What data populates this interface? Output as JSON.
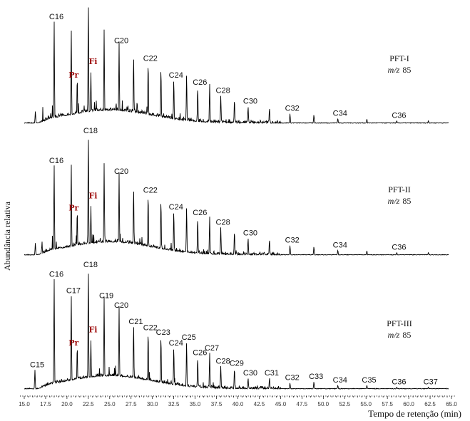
{
  "chart_data": {
    "type": "line",
    "title": "",
    "xlabel": "Tempo de retenção (min)",
    "ylabel": "Abundância relativa",
    "xlim": [
      15.0,
      65.0
    ],
    "xticks": [
      "15.0",
      "17.5",
      "20.0",
      "22.5",
      "25.0",
      "27.5",
      "30.0",
      "32.5",
      "35.0",
      "37.5",
      "40.0",
      "42.5",
      "45.0",
      "47.5",
      "50.0",
      "52.5",
      "55.0",
      "57.5",
      "60.0",
      "62.5",
      "65.0"
    ],
    "series": [
      {
        "name": "PFT-I",
        "subtitle_italic": "m/z",
        "subtitle": "85",
        "peaks": [
          {
            "t": 16.3,
            "i": 10
          },
          {
            "t": 18.5,
            "i": 85,
            "label": "C16"
          },
          {
            "t": 20.5,
            "i": 78
          },
          {
            "t": 21.2,
            "i": 36,
            "label": "Pr"
          },
          {
            "t": 22.5,
            "i": 100
          },
          {
            "t": 22.8,
            "i": 40,
            "label": "Fi"
          },
          {
            "t": 24.35,
            "i": 75
          },
          {
            "t": 26.1,
            "i": 65,
            "label": "C20"
          },
          {
            "t": 27.8,
            "i": 54
          },
          {
            "t": 29.5,
            "i": 50,
            "label": "C22"
          },
          {
            "t": 31.0,
            "i": 45
          },
          {
            "t": 32.5,
            "i": 36,
            "label": "C24"
          },
          {
            "t": 34.0,
            "i": 40
          },
          {
            "t": 35.3,
            "i": 30,
            "label": "C26"
          },
          {
            "t": 36.7,
            "i": 32
          },
          {
            "t": 38.0,
            "i": 23,
            "label": "C28"
          },
          {
            "t": 39.6,
            "i": 20
          },
          {
            "t": 41.2,
            "i": 14,
            "label": "C30"
          },
          {
            "t": 43.7,
            "i": 13
          },
          {
            "t": 46.1,
            "i": 8,
            "label": "C32"
          },
          {
            "t": 48.9,
            "i": 7
          },
          {
            "t": 51.7,
            "i": 4,
            "label": "C34"
          },
          {
            "t": 55.1,
            "i": 3.5
          },
          {
            "t": 58.6,
            "i": 2,
            "label": "C36"
          },
          {
            "t": 62.3,
            "i": 2
          }
        ]
      },
      {
        "name": "PFT-II",
        "subtitle_italic": "m/z",
        "subtitle": "85",
        "peaks": [
          {
            "t": 16.3,
            "i": 10
          },
          {
            "t": 18.5,
            "i": 75,
            "label": "C16"
          },
          {
            "t": 20.5,
            "i": 76
          },
          {
            "t": 21.2,
            "i": 35,
            "label": "Pr"
          },
          {
            "t": 22.5,
            "i": 100,
            "label": "C18"
          },
          {
            "t": 22.8,
            "i": 38,
            "label": "Fi"
          },
          {
            "t": 24.35,
            "i": 74
          },
          {
            "t": 26.1,
            "i": 66,
            "label": "C20"
          },
          {
            "t": 27.8,
            "i": 54
          },
          {
            "t": 29.5,
            "i": 50,
            "label": "C22"
          },
          {
            "t": 31.0,
            "i": 45
          },
          {
            "t": 32.5,
            "i": 36,
            "label": "C24"
          },
          {
            "t": 34.0,
            "i": 40
          },
          {
            "t": 35.3,
            "i": 31,
            "label": "C26"
          },
          {
            "t": 36.7,
            "i": 32
          },
          {
            "t": 38.0,
            "i": 23,
            "label": "C28"
          },
          {
            "t": 39.6,
            "i": 20
          },
          {
            "t": 41.2,
            "i": 14,
            "label": "C30"
          },
          {
            "t": 43.7,
            "i": 13
          },
          {
            "t": 46.1,
            "i": 8,
            "label": "C32"
          },
          {
            "t": 48.9,
            "i": 7
          },
          {
            "t": 51.7,
            "i": 4,
            "label": "C34"
          },
          {
            "t": 55.1,
            "i": 3.5
          },
          {
            "t": 58.6,
            "i": 2,
            "label": "C36"
          },
          {
            "t": 62.3,
            "i": 2
          }
        ]
      },
      {
        "name": "PFT-III",
        "subtitle_italic": "m/z",
        "subtitle": "85",
        "peaks": [
          {
            "t": 16.25,
            "i": 16,
            "label": "C15"
          },
          {
            "t": 18.5,
            "i": 92,
            "label": "C16"
          },
          {
            "t": 20.5,
            "i": 78,
            "label": "C17"
          },
          {
            "t": 21.2,
            "i": 34,
            "label": "Pr"
          },
          {
            "t": 22.5,
            "i": 100,
            "label": "C18"
          },
          {
            "t": 22.8,
            "i": 38,
            "label": "Fi"
          },
          {
            "t": 24.35,
            "i": 74,
            "label": "C19"
          },
          {
            "t": 26.1,
            "i": 66,
            "label": "C20"
          },
          {
            "t": 27.8,
            "i": 52,
            "label": "C21"
          },
          {
            "t": 29.5,
            "i": 47,
            "label": "C22"
          },
          {
            "t": 31.0,
            "i": 43,
            "label": "C23"
          },
          {
            "t": 32.5,
            "i": 34,
            "label": "C24"
          },
          {
            "t": 34.0,
            "i": 39,
            "label": "C25"
          },
          {
            "t": 35.3,
            "i": 26,
            "label": "C26"
          },
          {
            "t": 36.7,
            "i": 30,
            "label": "C27"
          },
          {
            "t": 38.0,
            "i": 19,
            "label": "C28"
          },
          {
            "t": 39.6,
            "i": 17,
            "label": "C29"
          },
          {
            "t": 41.2,
            "i": 9,
            "label": "C30"
          },
          {
            "t": 43.7,
            "i": 9,
            "label": "C31"
          },
          {
            "t": 46.1,
            "i": 5,
            "label": "C32"
          },
          {
            "t": 48.9,
            "i": 6,
            "label": "C33"
          },
          {
            "t": 51.7,
            "i": 3,
            "label": "C34"
          },
          {
            "t": 55.1,
            "i": 3,
            "label": "C35"
          },
          {
            "t": 58.6,
            "i": 1.5,
            "label": "C36"
          },
          {
            "t": 62.3,
            "i": 1.5,
            "label": "C37"
          }
        ]
      }
    ]
  }
}
